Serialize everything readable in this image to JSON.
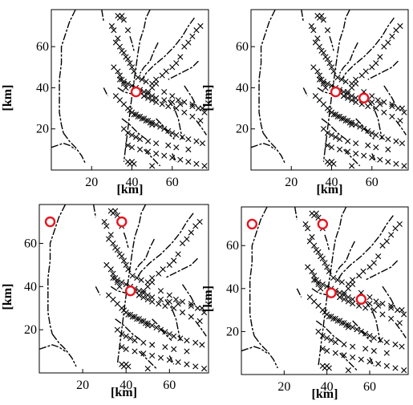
{
  "chart_data": [
    {
      "type": "scatter",
      "xlabel": "[km]",
      "ylabel": "[km]",
      "xlim": [
        0,
        78
      ],
      "ylim": [
        0,
        78
      ],
      "xticks": [
        "20",
        "40",
        "60"
      ],
      "yticks": [
        "20",
        "40",
        "60"
      ],
      "grid": false,
      "legend": "none",
      "series": [
        {
          "marker": "x",
          "x": [
            33,
            34,
            35,
            36,
            30,
            31,
            38,
            32,
            33,
            34,
            35,
            36,
            37,
            38,
            39,
            40,
            41,
            43,
            45,
            47,
            50,
            52,
            55,
            57,
            60,
            62,
            64,
            66,
            68,
            70,
            72,
            74,
            46,
            48,
            50,
            52,
            56,
            60,
            63,
            66,
            70,
            73,
            76,
            31,
            33,
            34,
            35,
            36,
            37,
            44,
            46,
            48,
            50,
            52,
            55,
            58,
            62,
            66,
            70,
            74,
            32,
            34,
            36,
            38,
            40,
            42,
            44,
            46,
            48,
            50,
            52,
            54,
            56,
            58,
            60,
            62,
            65,
            68,
            72,
            75,
            38,
            40,
            44,
            48,
            52,
            56,
            60,
            64,
            68,
            72,
            76,
            39,
            41,
            43,
            45,
            47,
            49,
            50,
            36,
            38,
            40,
            42,
            44,
            48,
            52,
            58,
            62,
            68,
            34,
            36,
            38,
            40,
            42,
            44,
            46,
            48,
            50,
            52,
            56,
            60,
            64,
            70,
            75,
            38,
            39,
            40,
            41,
            50
          ],
          "y": [
            75,
            74,
            75,
            73,
            70,
            68,
            68,
            62,
            64,
            60,
            58,
            57,
            55,
            54,
            52,
            50,
            48,
            45,
            44,
            43,
            42,
            44,
            46,
            48,
            50,
            52,
            55,
            60,
            62,
            65,
            68,
            70,
            36,
            38,
            40,
            42,
            38,
            36,
            34,
            33,
            32,
            30,
            28,
            50,
            48,
            46,
            44,
            42,
            40,
            38,
            36,
            35,
            34,
            33,
            32,
            31,
            30,
            28,
            26,
            24,
            36,
            34,
            32,
            30,
            28,
            27,
            26,
            25,
            24,
            23,
            22,
            21,
            20,
            19,
            18,
            17,
            16,
            15,
            14,
            13,
            12,
            11,
            10,
            9,
            8,
            7,
            6,
            5,
            4,
            3,
            2,
            29,
            27,
            26,
            25,
            24,
            23,
            22,
            20,
            18,
            17,
            16,
            15,
            14,
            13,
            12,
            11,
            10,
            44,
            43,
            42,
            41,
            40,
            39,
            38,
            37,
            36,
            35,
            34,
            33,
            32,
            31,
            30,
            4,
            3,
            4,
            3,
            2
          ]
        },
        {
          "name": "",
          "marker": "circle",
          "color": "#e8141e",
          "x": [
            42
          ],
          "y": [
            38
          ]
        }
      ]
    },
    {
      "type": "scatter",
      "xlabel": "[km]",
      "ylabel": "[km]",
      "xlim": [
        0,
        78
      ],
      "ylim": [
        0,
        78
      ],
      "xticks": [
        "20",
        "40",
        "60"
      ],
      "yticks": [
        "20",
        "40",
        "60"
      ],
      "grid": false,
      "legend": "none",
      "series": [
        {
          "marker": "circle",
          "color": "#e8141e",
          "x": [
            42,
            56
          ],
          "y": [
            38,
            35
          ]
        }
      ]
    },
    {
      "type": "scatter",
      "xlabel": "[km]",
      "ylabel": "[km]",
      "xlim": [
        0,
        78
      ],
      "ylim": [
        0,
        78
      ],
      "xticks": [
        "20",
        "40",
        "60"
      ],
      "yticks": [
        "20",
        "40",
        "60"
      ],
      "grid": false,
      "legend": "none",
      "series": [
        {
          "marker": "circle",
          "color": "#e8141e",
          "x": [
            5,
            38,
            42
          ],
          "y": [
            70,
            70,
            38
          ]
        }
      ]
    },
    {
      "type": "scatter",
      "xlabel": "[km]",
      "ylabel": "[km]",
      "xlim": [
        0,
        78
      ],
      "ylim": [
        0,
        78
      ],
      "xticks": [
        "20",
        "40",
        "60"
      ],
      "yticks": [
        "20",
        "40",
        "60"
      ],
      "grid": false,
      "legend": "none",
      "series": [
        {
          "marker": "circle",
          "color": "#e8141e",
          "x": [
            5,
            38,
            42,
            56
          ],
          "y": [
            70,
            70,
            38,
            35
          ]
        }
      ]
    }
  ]
}
